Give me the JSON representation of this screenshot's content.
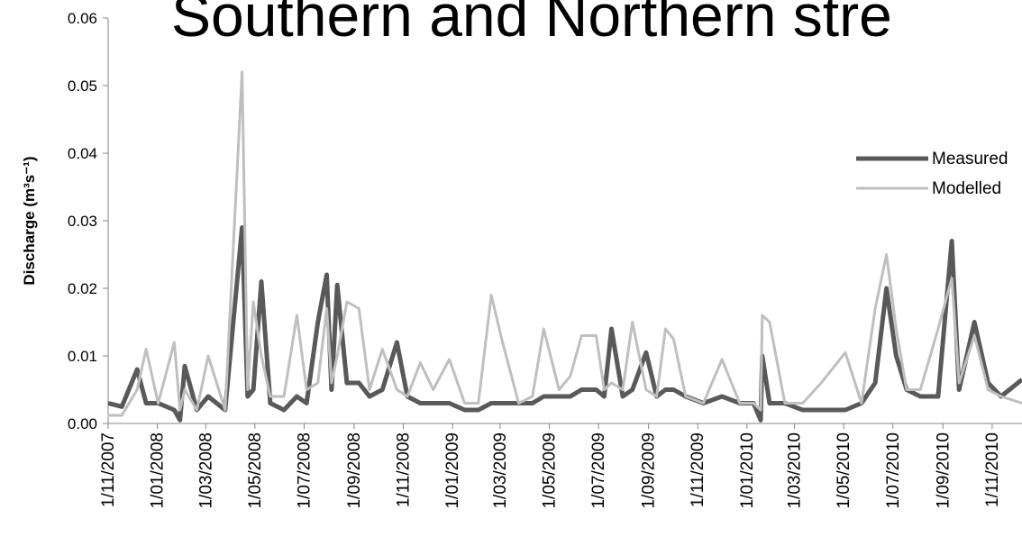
{
  "chart_data": {
    "type": "line",
    "title": "Southern and Northern stre",
    "y_label": "Discharge (m³s⁻¹)",
    "x": [
      "2007-11-01",
      "2007-11-18",
      "2007-12-07",
      "2007-12-18",
      "2008-01-02",
      "2008-01-22",
      "2008-01-29",
      "2008-02-04",
      "2008-02-19",
      "2008-03-04",
      "2008-03-25",
      "2008-04-15",
      "2008-04-22",
      "2008-04-29",
      "2008-05-09",
      "2008-05-20",
      "2008-06-06",
      "2008-06-22",
      "2008-07-04",
      "2008-07-18",
      "2008-07-29",
      "2008-08-04",
      "2008-08-11",
      "2008-08-23",
      "2008-09-07",
      "2008-09-20",
      "2008-10-06",
      "2008-10-24",
      "2008-11-06",
      "2008-11-22",
      "2008-12-08",
      "2008-12-28",
      "2009-01-16",
      "2009-02-02",
      "2009-02-18",
      "2009-03-03",
      "2009-03-24",
      "2009-04-10",
      "2009-04-24",
      "2009-05-13",
      "2009-05-27",
      "2009-06-10",
      "2009-06-28",
      "2009-07-08",
      "2009-07-17",
      "2009-07-31",
      "2009-08-12",
      "2009-08-29",
      "2009-09-11",
      "2009-09-22",
      "2009-10-02",
      "2009-10-17",
      "2009-11-08",
      "2009-12-01",
      "2009-12-23",
      "2010-01-09",
      "2010-01-18",
      "2010-01-20",
      "2010-01-29",
      "2010-02-17",
      "2010-03-11",
      "2010-04-03",
      "2010-05-03",
      "2010-05-23",
      "2010-06-09",
      "2010-06-23",
      "2010-07-05",
      "2010-07-18",
      "2010-08-04",
      "2010-08-26",
      "2010-09-12",
      "2010-09-21",
      "2010-10-10",
      "2010-10-27",
      "2010-11-12",
      "2010-12-08"
    ],
    "series": [
      {
        "name": "Measured",
        "color": "#595959",
        "values": [
          0.003,
          0.0025,
          0.008,
          0.003,
          0.003,
          0.002,
          0.0005,
          0.0085,
          0.002,
          0.004,
          0.002,
          0.029,
          0.004,
          0.005,
          0.021,
          0.003,
          0.002,
          0.004,
          0.003,
          0.015,
          0.022,
          0.005,
          0.0205,
          0.006,
          0.006,
          0.004,
          0.005,
          0.012,
          0.004,
          0.003,
          0.003,
          0.003,
          0.002,
          0.002,
          0.003,
          0.003,
          0.003,
          0.003,
          0.004,
          0.004,
          0.004,
          0.005,
          0.005,
          0.004,
          0.014,
          0.004,
          0.005,
          0.0105,
          0.004,
          0.005,
          0.005,
          0.004,
          0.003,
          0.004,
          0.003,
          0.003,
          0.0005,
          0.01,
          0.003,
          0.003,
          0.002,
          0.002,
          0.002,
          0.003,
          0.006,
          0.02,
          0.01,
          0.005,
          0.004,
          0.004,
          0.027,
          0.005,
          0.015,
          0.006,
          0.004,
          0.0065
        ]
      },
      {
        "name": "Modelled",
        "color": "#bfbfbf",
        "values": [
          0.0012,
          0.0012,
          0.005,
          0.011,
          0.003,
          0.012,
          0.002,
          0.005,
          0.002,
          0.01,
          0.002,
          0.052,
          0.005,
          0.018,
          0.01,
          0.004,
          0.004,
          0.016,
          0.005,
          0.006,
          0.017,
          0.006,
          0.01,
          0.018,
          0.017,
          0.005,
          0.011,
          0.005,
          0.004,
          0.009,
          0.005,
          0.0095,
          0.003,
          0.003,
          0.019,
          0.0125,
          0.003,
          0.004,
          0.014,
          0.005,
          0.007,
          0.013,
          0.013,
          0.005,
          0.006,
          0.005,
          0.015,
          0.005,
          0.004,
          0.014,
          0.0125,
          0.004,
          0.003,
          0.0095,
          0.003,
          0.003,
          0.002,
          0.016,
          0.015,
          0.003,
          0.003,
          0.006,
          0.0105,
          0.003,
          0.017,
          0.025,
          0.014,
          0.005,
          0.005,
          0.014,
          0.0215,
          0.006,
          0.013,
          0.005,
          0.004,
          0.003
        ]
      }
    ],
    "xlim": [
      "2007-11-01",
      "2010-12-08"
    ],
    "xticks": [
      {
        "value": "2007-11-01",
        "label": "1/11/2007"
      },
      {
        "value": "2008-01-01",
        "label": "1/01/2008"
      },
      {
        "value": "2008-03-01",
        "label": "1/03/2008"
      },
      {
        "value": "2008-05-01",
        "label": "1/05/2008"
      },
      {
        "value": "2008-07-01",
        "label": "1/07/2008"
      },
      {
        "value": "2008-09-01",
        "label": "1/09/2008"
      },
      {
        "value": "2008-11-01",
        "label": "1/11/2008"
      },
      {
        "value": "2009-01-01",
        "label": "1/01/2009"
      },
      {
        "value": "2009-03-01",
        "label": "1/03/2009"
      },
      {
        "value": "2009-05-01",
        "label": "1/05/2009"
      },
      {
        "value": "2009-07-01",
        "label": "1/07/2009"
      },
      {
        "value": "2009-09-01",
        "label": "1/09/2009"
      },
      {
        "value": "2009-11-01",
        "label": "1/11/2009"
      },
      {
        "value": "2010-01-01",
        "label": "1/01/2010"
      },
      {
        "value": "2010-03-01",
        "label": "1/03/2010"
      },
      {
        "value": "2010-05-01",
        "label": "1/05/2010"
      },
      {
        "value": "2010-07-01",
        "label": "1/07/2010"
      },
      {
        "value": "2010-09-01",
        "label": "1/09/2010"
      },
      {
        "value": "2010-11-01",
        "label": "1/11/2010"
      }
    ],
    "ylim": [
      0,
      0.06
    ],
    "yticks": [
      {
        "value": 0,
        "label": "0.00"
      },
      0.01,
      0.02,
      0.03,
      0.04,
      0.05,
      0.06
    ],
    "legend": "upper right"
  }
}
